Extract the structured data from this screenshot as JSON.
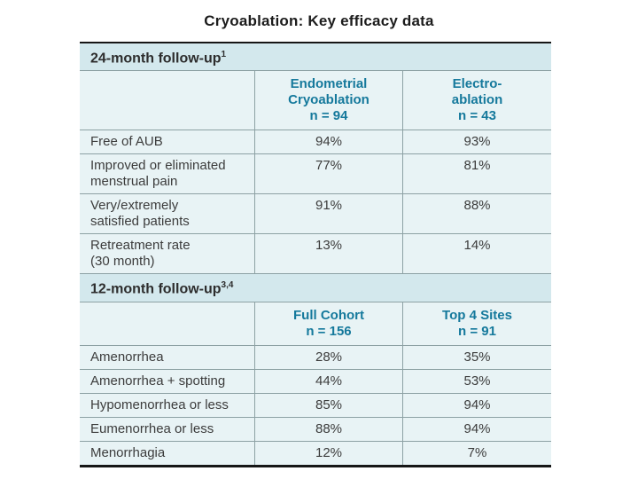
{
  "page": {
    "title": "Cryoablation: Key efficacy data"
  },
  "table": {
    "sections": [
      {
        "heading": "24-month follow-up",
        "heading_superscript": "1",
        "columns": [
          {
            "label": "Endometrial\nCryoablation",
            "n": "n = 94"
          },
          {
            "label": "Electro-\nablation",
            "n": "n = 43"
          }
        ],
        "rows": [
          {
            "label": "Free of AUB",
            "values": [
              "94%",
              "93%"
            ]
          },
          {
            "label": "Improved or eliminated\nmenstrual pain",
            "values": [
              "77%",
              "81%"
            ]
          },
          {
            "label": "Very/extremely\nsatisfied patients",
            "values": [
              "91%",
              "88%"
            ]
          },
          {
            "label": "Retreatment rate\n(30 month)",
            "values": [
              "13%",
              "14%"
            ]
          }
        ]
      },
      {
        "heading": "12-month follow-up",
        "heading_superscript": "3,4",
        "columns": [
          {
            "label": "Full Cohort",
            "n": "n = 156"
          },
          {
            "label": "Top 4 Sites",
            "n": "n = 91"
          }
        ],
        "rows": [
          {
            "label": "Amenorrhea",
            "values": [
              "28%",
              "35%"
            ]
          },
          {
            "label": "Amenorrhea + spotting",
            "values": [
              "44%",
              "53%"
            ]
          },
          {
            "label": "Hypomenorrhea or less",
            "values": [
              "85%",
              "94%"
            ]
          },
          {
            "label": "Eumenorrhea or less",
            "values": [
              "88%",
              "94%"
            ]
          },
          {
            "label": "Menorrhagia",
            "values": [
              "12%",
              "7%"
            ]
          }
        ]
      }
    ]
  },
  "colors": {
    "band_bg": "#d3e8ed",
    "row_bg": "#e8f3f5",
    "grid_line": "#8da1a4",
    "frame_line": "#161616",
    "header_text": "#15799c",
    "body_text": "#3c3c3c"
  }
}
